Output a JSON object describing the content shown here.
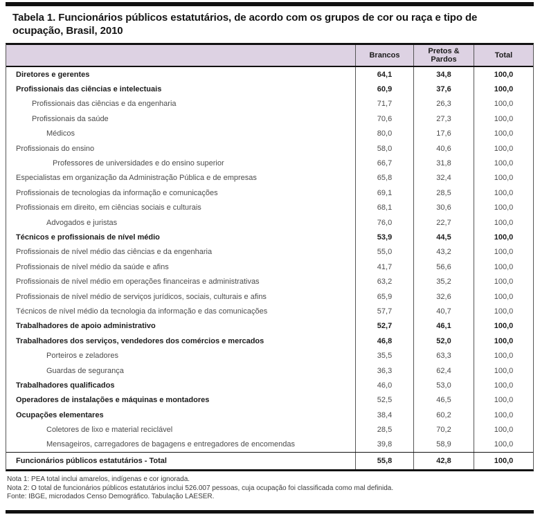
{
  "page": {
    "title": "Tabela 1. Funcionários públicos estatutários, de acordo com os grupos de cor ou raça e tipo de ocupação, Brasil, 2010"
  },
  "colors": {
    "header_bg": "#ddd2e3",
    "rule_dark": "#111111",
    "divider_gray": "#555555"
  },
  "table": {
    "header": {
      "occupation": "",
      "col_brancos": "Brancos",
      "col_pretos_pardos": "Pretos & Pardos",
      "col_total": "Total"
    },
    "rows": [
      {
        "label": "Diretores e gerentes",
        "indent": 0,
        "bold": true,
        "bold_values": true,
        "values": [
          "64,1",
          "34,8",
          "100,0"
        ]
      },
      {
        "label": "Profissionais das ciências e intelectuais",
        "indent": 0,
        "bold": true,
        "bold_values": true,
        "values": [
          "60,9",
          "37,6",
          "100,0"
        ]
      },
      {
        "label": "Profissionais das ciências e da engenharia",
        "indent": 1,
        "bold": false,
        "bold_values": false,
        "values": [
          "71,7",
          "26,3",
          "100,0"
        ]
      },
      {
        "label": "Profissionais da saúde",
        "indent": 1,
        "bold": false,
        "bold_values": false,
        "values": [
          "70,6",
          "27,3",
          "100,0"
        ]
      },
      {
        "label": "Médicos",
        "indent": 2,
        "bold": false,
        "bold_values": false,
        "values": [
          "80,0",
          "17,6",
          "100,0"
        ]
      },
      {
        "label": "Profissionais do ensino",
        "indent": 0,
        "bold": false,
        "bold_values": false,
        "values": [
          "58,0",
          "40,6",
          "100,0"
        ]
      },
      {
        "label": "Professores de universidades e do ensino superior",
        "indent": 3,
        "bold": false,
        "bold_values": false,
        "values": [
          "66,7",
          "31,8",
          "100,0"
        ]
      },
      {
        "label": "Especialistas em organização da Administração Pública e de empresas",
        "indent": 0,
        "bold": false,
        "bold_values": false,
        "values": [
          "65,8",
          "32,4",
          "100,0"
        ]
      },
      {
        "label": "Profissionais de tecnologias da informação e comunicações",
        "indent": 0,
        "bold": false,
        "bold_values": false,
        "values": [
          "69,1",
          "28,5",
          "100,0"
        ]
      },
      {
        "label": "Profissionais em direito, em ciências sociais e culturais",
        "indent": 0,
        "bold": false,
        "bold_values": false,
        "values": [
          "68,1",
          "30,6",
          "100,0"
        ]
      },
      {
        "label": "Advogados e juristas",
        "indent": 2,
        "bold": false,
        "bold_values": false,
        "values": [
          "76,0",
          "22,7",
          "100,0"
        ]
      },
      {
        "label": "Técnicos e profissionais de nível médio",
        "indent": 0,
        "bold": true,
        "bold_values": true,
        "values": [
          "53,9",
          "44,5",
          "100,0"
        ]
      },
      {
        "label": "Profissionais de nível médio das ciências e da engenharia",
        "indent": 0,
        "bold": false,
        "bold_values": false,
        "values": [
          "55,0",
          "43,2",
          "100,0"
        ]
      },
      {
        "label": "Profissionais de nível médio da saúde e afins",
        "indent": 0,
        "bold": false,
        "bold_values": false,
        "values": [
          "41,7",
          "56,6",
          "100,0"
        ]
      },
      {
        "label": "Profissionais de nível médio em operações financeiras e administrativas",
        "indent": 0,
        "bold": false,
        "bold_values": false,
        "values": [
          "63,2",
          "35,2",
          "100,0"
        ]
      },
      {
        "label": "Profissionais de nível médio de serviços jurídicos, sociais, culturais e afins",
        "indent": 0,
        "bold": false,
        "bold_values": false,
        "values": [
          "65,9",
          "32,6",
          "100,0"
        ]
      },
      {
        "label": "Técnicos de nível médio da tecnologia da informação e das comunicações",
        "indent": 0,
        "bold": false,
        "bold_values": false,
        "values": [
          "57,7",
          "40,7",
          "100,0"
        ]
      },
      {
        "label": "Trabalhadores de apoio administrativo",
        "indent": 0,
        "bold": true,
        "bold_values": true,
        "values": [
          "52,7",
          "46,1",
          "100,0"
        ]
      },
      {
        "label": "Trabalhadores dos serviços, vendedores dos comércios e mercados",
        "indent": 0,
        "bold": true,
        "bold_values": true,
        "values": [
          "46,8",
          "52,0",
          "100,0"
        ]
      },
      {
        "label": "Porteiros e zeladores",
        "indent": 2,
        "bold": false,
        "bold_values": false,
        "values": [
          "35,5",
          "63,3",
          "100,0"
        ]
      },
      {
        "label": "Guardas de segurança",
        "indent": 2,
        "bold": false,
        "bold_values": false,
        "values": [
          "36,3",
          "62,4",
          "100,0"
        ]
      },
      {
        "label": "Trabalhadores qualificados",
        "indent": 0,
        "bold": true,
        "bold_values": false,
        "values": [
          "46,0",
          "53,0",
          "100,0"
        ]
      },
      {
        "label": "Operadores de instalações e máquinas e montadores",
        "indent": 0,
        "bold": true,
        "bold_values": false,
        "values": [
          "52,5",
          "46,5",
          "100,0"
        ]
      },
      {
        "label": "Ocupações elementares",
        "indent": 0,
        "bold": true,
        "bold_values": false,
        "values": [
          "38,4",
          "60,2",
          "100,0"
        ]
      },
      {
        "label": "Coletores de lixo e material reciclável",
        "indent": 2,
        "bold": false,
        "bold_values": false,
        "values": [
          "28,5",
          "70,2",
          "100,0"
        ]
      },
      {
        "label": "Mensageiros, carregadores de bagagens e entregadores de encomendas",
        "indent": 2,
        "bold": false,
        "bold_values": false,
        "values": [
          "39,8",
          "58,9",
          "100,0"
        ]
      },
      {
        "label": "Funcionários públicos estatutários - Total",
        "indent": 0,
        "bold": true,
        "bold_values": true,
        "separator_above": true,
        "values": [
          "55,8",
          "42,8",
          "100,0"
        ]
      }
    ]
  },
  "notes": [
    "Nota 1: PEA total inclui amarelos, indígenas e cor ignorada.",
    "Nota 2: O total de funcionários públicos estatutários inclui 526.007 pessoas, cuja ocupação foi classificada como mal definida.",
    "Fonte: IBGE, microdados Censo Demográfico. Tabulação LAESER."
  ]
}
